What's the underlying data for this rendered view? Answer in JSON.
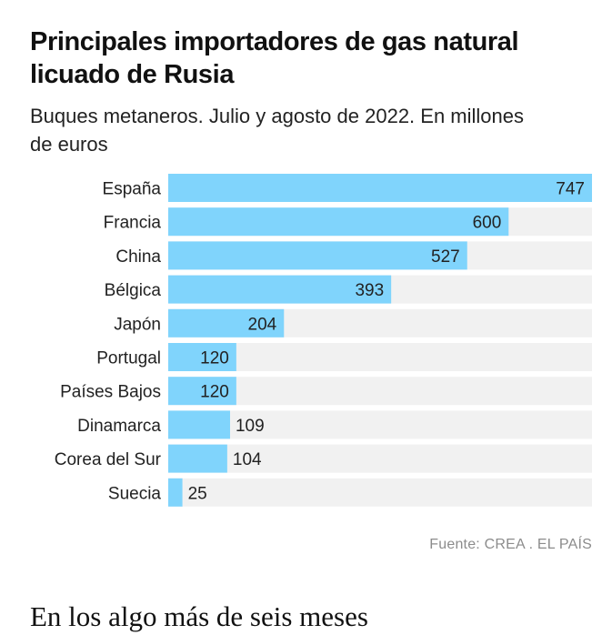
{
  "chart_data": {
    "type": "bar",
    "orientation": "horizontal",
    "title": "Principales importadores de gas natural licuado de Rusia",
    "subtitle": "Buques metaneros. Julio y agosto de 2022. En millones de euros",
    "categories": [
      "España",
      "Francia",
      "China",
      "Bélgica",
      "Japón",
      "Portugal",
      "Países Bajos",
      "Dinamarca",
      "Corea del Sur",
      "Suecia"
    ],
    "values": [
      747,
      600,
      527,
      393,
      204,
      120,
      120,
      109,
      104,
      25
    ],
    "xlim": [
      0,
      747
    ],
    "grid": false,
    "bar_color": "#80d4fc",
    "track_color": "#f1f1f1"
  },
  "source": "Fuente: CREA . EL PAÍS",
  "next_paragraph": "En los algo más de seis meses"
}
